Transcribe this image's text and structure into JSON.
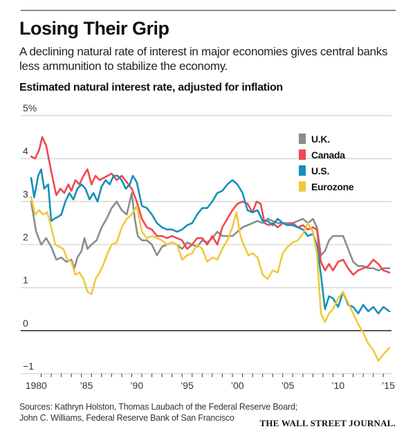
{
  "header": {
    "title": "Losing Their Grip",
    "subtitle": "A declining natural rate of interest in major economies gives central banks less ammunition to stabilize the economy.",
    "chart_title": "Estimated natural interest rate, adjusted for inflation"
  },
  "footer": {
    "source_line1": "Sources: Kathryn Holston, Thomas Laubach of the Federal Reserve Board;",
    "source_line2": "John C. Williams, Federal Reserve Bank of San Francisco",
    "brand": "THE WALL STREET JOURNAL."
  },
  "chart_data": {
    "type": "line",
    "title": "Estimated natural interest rate, adjusted for inflation",
    "xlabel": "",
    "ylabel": "",
    "xlim": [
      1980,
      2015.6
    ],
    "ylim": [
      -1,
      5
    ],
    "grid": true,
    "legend_position": "top-right",
    "y_ticks": [
      {
        "value": 5,
        "label": "5%"
      },
      {
        "value": 4,
        "label": "4"
      },
      {
        "value": 3,
        "label": "3"
      },
      {
        "value": 2,
        "label": "2"
      },
      {
        "value": 1,
        "label": "1"
      },
      {
        "value": 0,
        "label": "0"
      },
      {
        "value": -1,
        "label": "−1"
      }
    ],
    "x_ticks": [
      {
        "value": 1980,
        "label": "1980"
      },
      {
        "value": 1985,
        "label": "’85"
      },
      {
        "value": 1990,
        "label": "’90"
      },
      {
        "value": 1995,
        "label": "’95"
      },
      {
        "value": 2000,
        "label": "’00"
      },
      {
        "value": 2005,
        "label": "’05"
      },
      {
        "value": 2010,
        "label": "’10"
      },
      {
        "value": 2015,
        "label": "’15"
      }
    ],
    "series": [
      {
        "name": "U.K.",
        "color": "#8c8c8c",
        "x": [
          1980.0,
          1980.5,
          1981.0,
          1981.5,
          1982.0,
          1982.5,
          1983.0,
          1983.5,
          1984.0,
          1984.3,
          1984.6,
          1985.0,
          1985.3,
          1985.6,
          1986.0,
          1986.5,
          1987.0,
          1987.5,
          1988.0,
          1988.5,
          1989.0,
          1989.5,
          1990.0,
          1990.3,
          1990.6,
          1991.0,
          1991.5,
          1992.0,
          1992.5,
          1993.0,
          1993.5,
          1994.0,
          1994.5,
          1995.0,
          1995.5,
          1996.0,
          1996.5,
          1997.0,
          1997.5,
          1998.0,
          1998.5,
          1999.0,
          1999.5,
          2000.0,
          2000.5,
          2001.0,
          2001.5,
          2002.0,
          2002.5,
          2003.0,
          2003.5,
          2004.0,
          2004.5,
          2005.0,
          2005.5,
          2006.0,
          2006.5,
          2007.0,
          2007.5,
          2008.0,
          2008.4,
          2008.8,
          2009.2,
          2009.6,
          2010.0,
          2010.5,
          2011.0,
          2011.5,
          2012.0,
          2012.5,
          2013.0,
          2013.5,
          2014.0,
          2014.5,
          2015.0,
          2015.6
        ],
        "values": [
          3.0,
          2.3,
          2.0,
          2.15,
          1.95,
          1.65,
          1.7,
          1.6,
          1.65,
          1.45,
          1.7,
          1.85,
          2.15,
          1.9,
          2.0,
          2.1,
          2.4,
          2.6,
          2.85,
          3.0,
          2.8,
          2.7,
          3.2,
          2.6,
          2.2,
          2.1,
          2.1,
          2.0,
          1.75,
          1.95,
          2.0,
          2.05,
          2.0,
          1.9,
          2.05,
          2.0,
          1.95,
          2.1,
          2.05,
          2.15,
          2.3,
          2.2,
          2.2,
          2.2,
          2.3,
          2.4,
          2.45,
          2.5,
          2.55,
          2.5,
          2.6,
          2.55,
          2.5,
          2.5,
          2.5,
          2.5,
          2.55,
          2.6,
          2.5,
          2.6,
          2.4,
          1.75,
          1.85,
          2.1,
          2.2,
          2.2,
          2.2,
          1.9,
          1.6,
          1.5,
          1.5,
          1.45,
          1.45,
          1.4,
          1.45,
          1.45
        ]
      },
      {
        "name": "Canada",
        "color": "#f0474f",
        "x": [
          1980.0,
          1980.4,
          1980.8,
          1981.1,
          1981.5,
          1982.0,
          1982.5,
          1982.9,
          1983.3,
          1983.7,
          1984.0,
          1984.4,
          1984.8,
          1985.2,
          1985.6,
          1986.0,
          1986.4,
          1986.8,
          1987.2,
          1987.6,
          1988.0,
          1988.5,
          1989.0,
          1989.5,
          1990.0,
          1990.5,
          1991.0,
          1991.5,
          1992.0,
          1992.5,
          1993.0,
          1993.5,
          1994.0,
          1994.5,
          1995.0,
          1995.5,
          1996.0,
          1996.5,
          1997.0,
          1997.5,
          1998.0,
          1998.5,
          1999.0,
          1999.5,
          2000.0,
          2000.5,
          2001.0,
          2001.5,
          2002.0,
          2002.4,
          2002.8,
          2003.2,
          2003.6,
          2004.0,
          2004.5,
          2005.0,
          2005.5,
          2006.0,
          2006.5,
          2007.0,
          2007.5,
          2008.0,
          2008.4,
          2008.8,
          2009.2,
          2009.6,
          2010.0,
          2010.5,
          2011.0,
          2011.5,
          2012.0,
          2012.5,
          2013.0,
          2013.5,
          2014.0,
          2014.5,
          2015.0,
          2015.6
        ],
        "values": [
          4.05,
          4.0,
          4.2,
          4.5,
          4.3,
          3.7,
          3.15,
          3.3,
          3.2,
          3.4,
          3.25,
          3.5,
          3.4,
          3.6,
          3.75,
          3.4,
          3.6,
          3.5,
          3.55,
          3.6,
          3.65,
          3.5,
          3.6,
          3.45,
          3.3,
          3.0,
          2.6,
          2.4,
          2.35,
          2.2,
          2.2,
          2.15,
          2.2,
          2.15,
          2.1,
          1.9,
          2.0,
          2.15,
          2.15,
          2.0,
          2.2,
          2.0,
          2.4,
          2.6,
          2.8,
          2.95,
          3.0,
          2.95,
          2.75,
          3.0,
          2.95,
          2.5,
          2.45,
          2.5,
          2.4,
          2.5,
          2.45,
          2.5,
          2.4,
          2.45,
          2.35,
          2.4,
          2.35,
          1.6,
          1.4,
          1.55,
          1.4,
          1.6,
          1.65,
          1.45,
          1.3,
          1.4,
          1.45,
          1.5,
          1.65,
          1.55,
          1.4,
          1.35
        ]
      },
      {
        "name": "U.S.",
        "color": "#1590b8",
        "x": [
          1980.0,
          1980.3,
          1980.7,
          1981.0,
          1981.3,
          1981.7,
          1982.0,
          1982.3,
          1982.7,
          1983.0,
          1983.4,
          1983.8,
          1984.2,
          1984.6,
          1985.0,
          1985.4,
          1985.8,
          1986.2,
          1986.6,
          1987.0,
          1987.4,
          1987.8,
          1988.2,
          1988.6,
          1989.0,
          1989.4,
          1989.8,
          1990.1,
          1990.5,
          1991.0,
          1991.5,
          1992.0,
          1992.5,
          1993.0,
          1993.5,
          1994.0,
          1994.5,
          1995.0,
          1995.5,
          1996.0,
          1996.5,
          1997.0,
          1997.5,
          1998.0,
          1998.5,
          1999.0,
          1999.5,
          2000.0,
          2000.5,
          2001.0,
          2001.5,
          2002.0,
          2002.5,
          2003.0,
          2003.5,
          2004.0,
          2004.5,
          2005.0,
          2005.5,
          2006.0,
          2006.5,
          2007.0,
          2007.5,
          2008.0,
          2008.4,
          2008.8,
          2009.2,
          2009.6,
          2010.0,
          2010.5,
          2011.0,
          2011.5,
          2012.0,
          2012.5,
          2013.0,
          2013.5,
          2014.0,
          2014.5,
          2015.0,
          2015.6
        ],
        "values": [
          3.55,
          3.1,
          3.6,
          3.75,
          3.3,
          3.4,
          2.55,
          2.6,
          2.65,
          2.7,
          3.0,
          3.2,
          3.05,
          3.3,
          3.4,
          3.3,
          3.05,
          3.2,
          3.0,
          3.35,
          3.5,
          3.4,
          3.6,
          3.6,
          3.5,
          3.3,
          3.4,
          3.6,
          3.45,
          2.9,
          2.85,
          2.7,
          2.5,
          2.4,
          2.35,
          2.35,
          2.3,
          2.35,
          2.45,
          2.5,
          2.7,
          2.85,
          2.85,
          3.0,
          3.2,
          3.25,
          3.4,
          3.5,
          3.4,
          3.2,
          2.8,
          2.75,
          2.8,
          2.55,
          2.55,
          2.45,
          2.6,
          2.5,
          2.45,
          2.45,
          2.4,
          2.35,
          2.2,
          2.25,
          2.0,
          1.3,
          0.5,
          0.8,
          0.75,
          0.55,
          0.9,
          0.6,
          0.55,
          0.4,
          0.6,
          0.45,
          0.55,
          0.4,
          0.55,
          0.45
        ]
      },
      {
        "name": "Eurozone",
        "color": "#f0c93c",
        "x": [
          1980.0,
          1980.4,
          1980.8,
          1981.2,
          1981.6,
          1982.0,
          1982.4,
          1982.8,
          1983.2,
          1983.6,
          1984.0,
          1984.4,
          1984.8,
          1985.2,
          1985.6,
          1986.0,
          1986.4,
          1986.8,
          1987.2,
          1987.6,
          1988.0,
          1988.5,
          1989.0,
          1989.5,
          1990.0,
          1990.5,
          1991.0,
          1991.5,
          1992.0,
          1992.5,
          1993.0,
          1993.5,
          1994.0,
          1994.5,
          1995.0,
          1995.5,
          1996.0,
          1996.5,
          1997.0,
          1997.5,
          1998.0,
          1998.5,
          1999.0,
          1999.5,
          2000.0,
          2000.4,
          2000.8,
          2001.2,
          2001.6,
          2002.0,
          2002.5,
          2003.0,
          2003.5,
          2004.0,
          2004.5,
          2005.0,
          2005.5,
          2006.0,
          2006.5,
          2007.0,
          2007.5,
          2008.0,
          2008.4,
          2008.8,
          2009.2,
          2009.6,
          2010.0,
          2010.5,
          2011.0,
          2011.5,
          2012.0,
          2012.5,
          2013.0,
          2013.5,
          2014.0,
          2014.5,
          2015.0,
          2015.6
        ],
        "values": [
          3.1,
          2.7,
          2.8,
          2.7,
          2.75,
          2.4,
          2.0,
          1.95,
          1.9,
          1.65,
          1.6,
          1.3,
          1.35,
          1.2,
          0.9,
          0.85,
          1.2,
          1.35,
          1.55,
          1.8,
          2.0,
          2.05,
          2.4,
          2.6,
          2.7,
          2.9,
          2.3,
          2.15,
          2.2,
          2.15,
          2.1,
          2.0,
          2.05,
          2.0,
          1.65,
          1.75,
          1.8,
          2.0,
          1.9,
          1.6,
          1.7,
          1.65,
          1.9,
          2.1,
          2.4,
          2.75,
          2.2,
          1.95,
          1.75,
          1.8,
          1.7,
          1.3,
          1.2,
          1.4,
          1.35,
          1.8,
          1.95,
          2.05,
          2.1,
          2.25,
          2.5,
          2.3,
          1.8,
          0.4,
          0.2,
          0.4,
          0.5,
          0.75,
          0.9,
          0.65,
          0.4,
          0.15,
          -0.05,
          -0.3,
          -0.45,
          -0.7,
          -0.55,
          -0.4
        ]
      }
    ]
  }
}
